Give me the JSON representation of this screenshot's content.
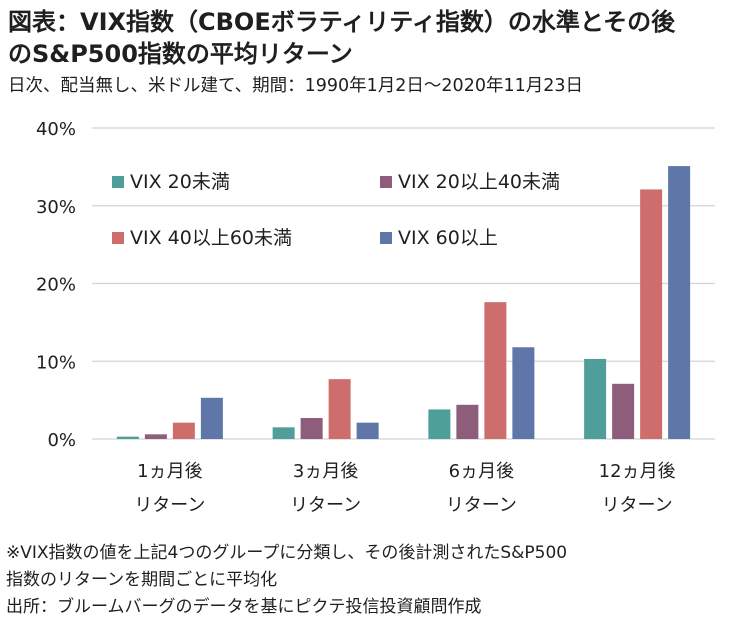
{
  "header": {
    "title_line1": "図表：VIX指数（CBOEボラティリティ指数）の水準とその後",
    "title_line2": "のS&P500指数の平均リターン",
    "subtitle": "日次、配当無し、米ドル建て、期間：1990年1月2日～2020年11月23日"
  },
  "chart_data": {
    "type": "bar",
    "categories": [
      [
        "1ヵ月後",
        "リターン"
      ],
      [
        "3ヵ月後",
        "リターン"
      ],
      [
        "6ヵ月後",
        "リターン"
      ],
      [
        "12ヵ月後",
        "リターン"
      ]
    ],
    "series": [
      {
        "name": "VIX 20未満",
        "color": "#4e9e9a",
        "values": [
          0.3,
          1.5,
          3.8,
          10.3
        ]
      },
      {
        "name": "VIX 20以上40未満",
        "color": "#8e5d7c",
        "values": [
          0.6,
          2.7,
          4.4,
          7.1
        ]
      },
      {
        "name": "VIX 40以上60未満",
        "color": "#cd6e6d",
        "values": [
          2.1,
          7.7,
          17.6,
          32.1
        ]
      },
      {
        "name": "VIX 60以上",
        "color": "#5f76a8",
        "values": [
          5.3,
          2.1,
          11.8,
          35.1
        ]
      }
    ],
    "ylim": [
      0,
      40
    ],
    "yticks": [
      0,
      10,
      20,
      30,
      40
    ],
    "ytick_labels": [
      "0%",
      "10%",
      "20%",
      "30%",
      "40%"
    ],
    "grid": true,
    "legend_position": "top-left, 2 columns"
  },
  "footnotes": {
    "note_line1": "※VIX指数の値を上記4つのグループに分類し、その後計測されたS&P500",
    "note_line2": "指数のリターンを期間ごとに平均化",
    "source": "出所：ブルームバーグのデータを基にピクテ投信投資顧問作成"
  }
}
